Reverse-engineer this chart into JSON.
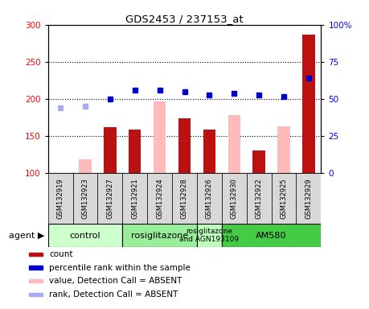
{
  "title": "GDS2453 / 237153_at",
  "samples": [
    "GSM132919",
    "GSM132923",
    "GSM132927",
    "GSM132921",
    "GSM132924",
    "GSM132928",
    "GSM132926",
    "GSM132930",
    "GSM132922",
    "GSM132925",
    "GSM132929"
  ],
  "count_values": [
    null,
    null,
    162,
    159,
    null,
    174,
    159,
    null,
    130,
    null,
    287
  ],
  "absent_value_bars": [
    null,
    119,
    null,
    null,
    197,
    null,
    null,
    178,
    null,
    163,
    null
  ],
  "percentile_rank": [
    null,
    null,
    200,
    212,
    212,
    210,
    205,
    207,
    205,
    203,
    228
  ],
  "absent_rank": [
    188,
    190,
    null,
    null,
    null,
    null,
    null,
    null,
    null,
    null,
    null
  ],
  "ylim_left": [
    100,
    300
  ],
  "ylim_right": [
    0,
    100
  ],
  "yticks_left": [
    100,
    150,
    200,
    250,
    300
  ],
  "yticks_right": [
    0,
    25,
    50,
    75,
    100
  ],
  "groups": [
    {
      "label": "control",
      "start": 0,
      "end": 3,
      "color": "#ccffcc"
    },
    {
      "label": "rosiglitazone",
      "start": 3,
      "end": 6,
      "color": "#99ee99"
    },
    {
      "label": "rosiglitazone\nand AGN193109",
      "start": 6,
      "end": 7,
      "color": "#bbffbb"
    },
    {
      "label": "AM580",
      "start": 7,
      "end": 11,
      "color": "#44cc44"
    }
  ],
  "bar_color_dark_red": "#bb1111",
  "bar_color_pink": "#ffbbbb",
  "dot_color_blue": "#0000cc",
  "dot_color_light_blue": "#aaaaee",
  "legend_items": [
    {
      "color": "#bb1111",
      "label": "count"
    },
    {
      "color": "#0000cc",
      "label": "percentile rank within the sample"
    },
    {
      "color": "#ffbbbb",
      "label": "value, Detection Call = ABSENT"
    },
    {
      "color": "#aaaaee",
      "label": "rank, Detection Call = ABSENT"
    }
  ]
}
